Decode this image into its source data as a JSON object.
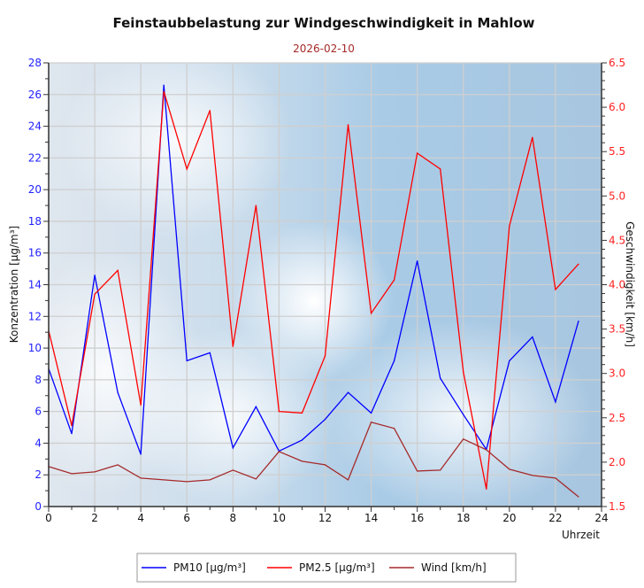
{
  "chart_data": {
    "type": "line",
    "title": "Feinstaubbelastung zur Windgeschwindigkeit in Mahlow",
    "subtitle": "2026-02-10",
    "xlabel": "Uhrzeit",
    "ylabel": "Konzentration [µg/m³]",
    "y2label": "Geschwindigkeit [km/h]",
    "xlim": [
      0,
      24
    ],
    "ylim": [
      0,
      28
    ],
    "y2lim": [
      1.5,
      6.5
    ],
    "x_ticks": [
      "0",
      "2",
      "4",
      "6",
      "8",
      "10",
      "12",
      "14",
      "16",
      "18",
      "20",
      "22",
      "24"
    ],
    "y_ticks": [
      "0",
      "2",
      "4",
      "6",
      "8",
      "10",
      "12",
      "14",
      "16",
      "18",
      "20",
      "22",
      "24",
      "26",
      "28"
    ],
    "y2_ticks": [
      "1.5",
      "2.0",
      "2.5",
      "3.0",
      "3.5",
      "4.0",
      "4.5",
      "5.0",
      "5.5",
      "6.0",
      "6.5"
    ],
    "grid": true,
    "legend_position": "bottom",
    "x": [
      0,
      1,
      2,
      3,
      4,
      5,
      6,
      7,
      8,
      9,
      10,
      11,
      12,
      13,
      14,
      15,
      16,
      17,
      18,
      19,
      20,
      21,
      22,
      23
    ],
    "series": [
      {
        "name": "PM10 [µg/m³]",
        "axis": "left",
        "color": "#0000ff",
        "values": [
          8.7,
          4.6,
          14.6,
          7.2,
          3.3,
          26.6,
          9.2,
          9.7,
          3.7,
          6.3,
          3.5,
          4.2,
          5.5,
          7.2,
          5.9,
          9.2,
          15.5,
          8.1,
          5.8,
          3.6,
          9.2,
          10.7,
          6.6,
          11.7
        ]
      },
      {
        "name": "PM2.5 [µg/m³]",
        "axis": "left",
        "color": "#ff0000",
        "values": [
          11.1,
          5.1,
          13.4,
          14.9,
          6.4,
          26.2,
          21.3,
          25.0,
          10.1,
          19.0,
          6.0,
          5.9,
          9.5,
          24.1,
          12.2,
          14.3,
          22.3,
          21.3,
          8.5,
          1.1,
          17.7,
          23.3,
          13.7,
          15.3
        ]
      },
      {
        "name": "Wind [km/h]",
        "axis": "right",
        "color": "#a52a2a",
        "values": [
          1.95,
          1.87,
          1.89,
          1.97,
          1.82,
          1.8,
          1.78,
          1.8,
          1.91,
          1.81,
          2.12,
          2.01,
          1.97,
          1.8,
          2.45,
          2.38,
          1.9,
          1.91,
          2.26,
          2.14,
          1.92,
          1.85,
          1.82,
          1.61
        ]
      }
    ]
  }
}
